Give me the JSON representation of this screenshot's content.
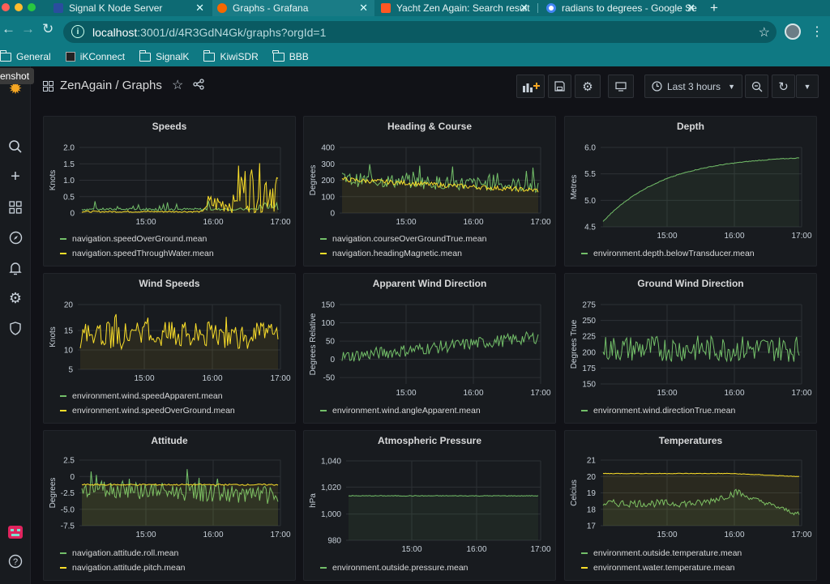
{
  "browser": {
    "tabs": [
      {
        "title": "Signal K Node Server",
        "favicon": "signalk-icon",
        "active": false
      },
      {
        "title": "Graphs - Grafana",
        "favicon": "grafana-icon",
        "active": true
      },
      {
        "title": "Yacht Zen Again: Search result",
        "favicon": "blogger-icon",
        "active": false
      },
      {
        "title": "radians to degrees - Google Se",
        "favicon": "google-icon",
        "active": false
      }
    ],
    "new_tab": "+",
    "url_host": "localhost",
    "url_rest": ":3001/d/4R3GdN4Gk/graphs?orgId=1",
    "bookmarks": [
      "General",
      "iKConnect",
      "SignalK",
      "KiwiSDR",
      "BBB"
    ],
    "tooltip": "enshot"
  },
  "dashboard": {
    "title": "ZenAgain / Graphs",
    "time_range": "Last 3 hours"
  },
  "colors": {
    "green": "#73bf69",
    "yellow": "#fade2a",
    "grid": "#2c3035",
    "text": "#c7d0d9"
  },
  "panels": [
    {
      "id": "speeds",
      "title": "Speeds",
      "ylabel": "Knots",
      "yticks": [
        "2.0",
        "1.5",
        "1.0",
        "0.5",
        "0"
      ],
      "xticks": [
        "15:00",
        "16:00",
        "17:00"
      ],
      "legend": [
        {
          "label": "navigation.speedOverGround.mean",
          "color": "#73bf69"
        },
        {
          "label": "navigation.speedThroughWater.mean",
          "color": "#fade2a"
        }
      ]
    },
    {
      "id": "heading",
      "title": "Heading & Course",
      "ylabel": "Degrees",
      "yticks": [
        "400",
        "300",
        "200",
        "100",
        "0"
      ],
      "xticks": [
        "15:00",
        "16:00",
        "17:00"
      ],
      "legend": [
        {
          "label": "navigation.courseOverGroundTrue.mean",
          "color": "#73bf69"
        },
        {
          "label": "navigation.headingMagnetic.mean",
          "color": "#fade2a"
        }
      ]
    },
    {
      "id": "depth",
      "title": "Depth",
      "ylabel": "Metres",
      "yticks": [
        "6.0",
        "5.5",
        "5.0",
        "4.5"
      ],
      "xticks": [
        "15:00",
        "16:00",
        "17:00"
      ],
      "legend": [
        {
          "label": "environment.depth.belowTransducer.mean",
          "color": "#73bf69"
        }
      ]
    },
    {
      "id": "wind-speeds",
      "title": "Wind Speeds",
      "ylabel": "Knots",
      "yticks": [
        "20",
        "15",
        "10",
        "5"
      ],
      "xticks": [
        "15:00",
        "16:00",
        "17:00"
      ],
      "legend": [
        {
          "label": "environment.wind.speedApparent.mean",
          "color": "#73bf69"
        },
        {
          "label": "environment.wind.speedOverGround.mean",
          "color": "#fade2a"
        }
      ]
    },
    {
      "id": "awd",
      "title": "Apparent Wind Direction",
      "ylabel": "Degrees Relative",
      "yticks": [
        "150",
        "100",
        "50",
        "0",
        "-50"
      ],
      "xticks": [
        "15:00",
        "16:00",
        "17:00"
      ],
      "legend": [
        {
          "label": "environment.wind.angleApparent.mean",
          "color": "#73bf69"
        }
      ]
    },
    {
      "id": "gwd",
      "title": "Ground Wind Direction",
      "ylabel": "Degrees True",
      "yticks": [
        "275",
        "250",
        "225",
        "200",
        "175",
        "150"
      ],
      "xticks": [
        "15:00",
        "16:00",
        "17:00"
      ],
      "legend": [
        {
          "label": "environment.wind.directionTrue.mean",
          "color": "#73bf69"
        }
      ]
    },
    {
      "id": "attitude",
      "title": "Attitude",
      "ylabel": "Degrees",
      "yticks": [
        "2.5",
        "0",
        "-2.5",
        "-5.0",
        "-7.5"
      ],
      "xticks": [
        "15:00",
        "16:00",
        "17:00"
      ],
      "legend": [
        {
          "label": "navigation.attitude.roll.mean",
          "color": "#73bf69"
        },
        {
          "label": "navigation.attitude.pitch.mean",
          "color": "#fade2a"
        }
      ]
    },
    {
      "id": "pressure",
      "title": "Atmospheric Pressure",
      "ylabel": "hPa",
      "yticks": [
        "1,040",
        "1,020",
        "1,000",
        "980"
      ],
      "xticks": [
        "15:00",
        "16:00",
        "17:00"
      ],
      "legend": [
        {
          "label": "environment.outside.pressure.mean",
          "color": "#73bf69"
        }
      ]
    },
    {
      "id": "temps",
      "title": "Temperatures",
      "ylabel": "Celcius",
      "yticks": [
        "21",
        "20",
        "19",
        "18",
        "17"
      ],
      "xticks": [
        "15:00",
        "16:00",
        "17:00"
      ],
      "legend": [
        {
          "label": "environment.outside.temperature.mean",
          "color": "#73bf69"
        },
        {
          "label": "environment.water.temperature.mean",
          "color": "#fade2a"
        }
      ]
    }
  ]
}
